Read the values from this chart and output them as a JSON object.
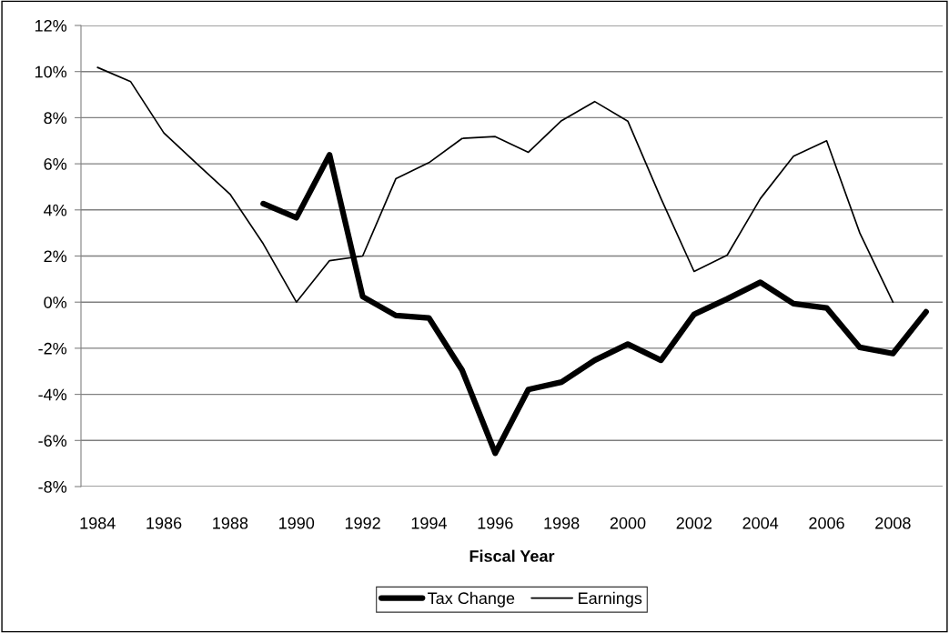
{
  "chart_data": {
    "type": "line",
    "xlabel": "Fiscal Year",
    "categories": [
      "1984",
      null,
      "1986",
      null,
      "1988",
      null,
      "1990",
      null,
      "1992",
      null,
      "1994",
      null,
      "1996",
      null,
      "1998",
      null,
      "2000",
      null,
      "2002",
      null,
      "2004",
      null,
      "2006",
      null,
      "2008",
      null
    ],
    "series": [
      {
        "name": "Tax Change",
        "color": "#000000",
        "values": [
          null,
          null,
          null,
          null,
          null,
          4.27,
          3.66,
          6.39,
          0.24,
          -0.58,
          -0.69,
          -2.95,
          -6.55,
          -3.79,
          -3.47,
          -2.52,
          -1.82,
          -2.52,
          -0.53,
          0.14,
          0.86,
          -0.07,
          -0.25,
          -1.96,
          -2.23,
          -0.42
        ]
      },
      {
        "name": "Earnings",
        "color": "#000000",
        "values": [
          10.18,
          9.56,
          7.34,
          6.0,
          4.68,
          2.53,
          0.0,
          1.8,
          2.0,
          5.35,
          6.05,
          7.1,
          7.18,
          6.5,
          7.87,
          8.7,
          7.85,
          4.5,
          1.33,
          2.04,
          4.49,
          6.33,
          7.0,
          3.0,
          0.0,
          null
        ]
      }
    ],
    "ylim": [
      -8,
      12
    ],
    "yticks": [
      {
        "value": -8,
        "label": "-8%"
      },
      {
        "value": -6,
        "label": "-6%"
      },
      {
        "value": -4,
        "label": "-4%"
      },
      {
        "value": -2,
        "label": "-2%"
      },
      {
        "value": 0,
        "label": "0%"
      },
      {
        "value": 2,
        "label": "2%"
      },
      {
        "value": 4,
        "label": "4%"
      },
      {
        "value": 6,
        "label": "6%"
      },
      {
        "value": 8,
        "label": "8%"
      },
      {
        "value": 10,
        "label": "10%"
      },
      {
        "value": 12,
        "label": "12%"
      }
    ],
    "grid": "y",
    "legend": "bottom",
    "marker": "none",
    "line_style": "solid"
  }
}
